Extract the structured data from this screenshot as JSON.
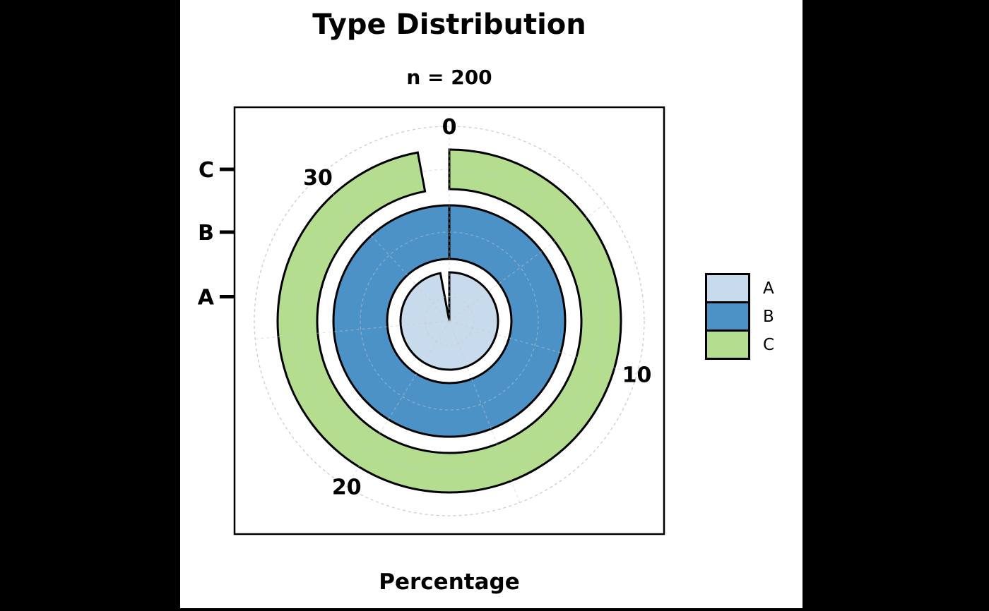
{
  "chart_data": {
    "type": "polar_bar",
    "title": "Type Distribution",
    "subtitle": "n = 200",
    "n": 200,
    "angular_axis_label": "Percentage",
    "angular_ticks": [
      0,
      10,
      20,
      30
    ],
    "angular_minor_step": 5,
    "angular_max": 34,
    "direction": "clockwise",
    "start_angle": "top",
    "radial_categories": [
      "A",
      "B",
      "C"
    ],
    "series": [
      {
        "name": "A",
        "value": 33,
        "color": "#c7dbec",
        "ring": "inner"
      },
      {
        "name": "B",
        "value": 34,
        "color": "#4d92c6",
        "ring": "middle"
      },
      {
        "name": "C",
        "value": 33,
        "color": "#b5dd90",
        "ring": "outer"
      }
    ],
    "legend": {
      "position": "right",
      "entries": [
        "A",
        "B",
        "C"
      ]
    },
    "grid": {
      "dashed": true,
      "color": "#cccccc",
      "on": true
    },
    "outline_color": "#000000",
    "background": "#ffffff"
  }
}
